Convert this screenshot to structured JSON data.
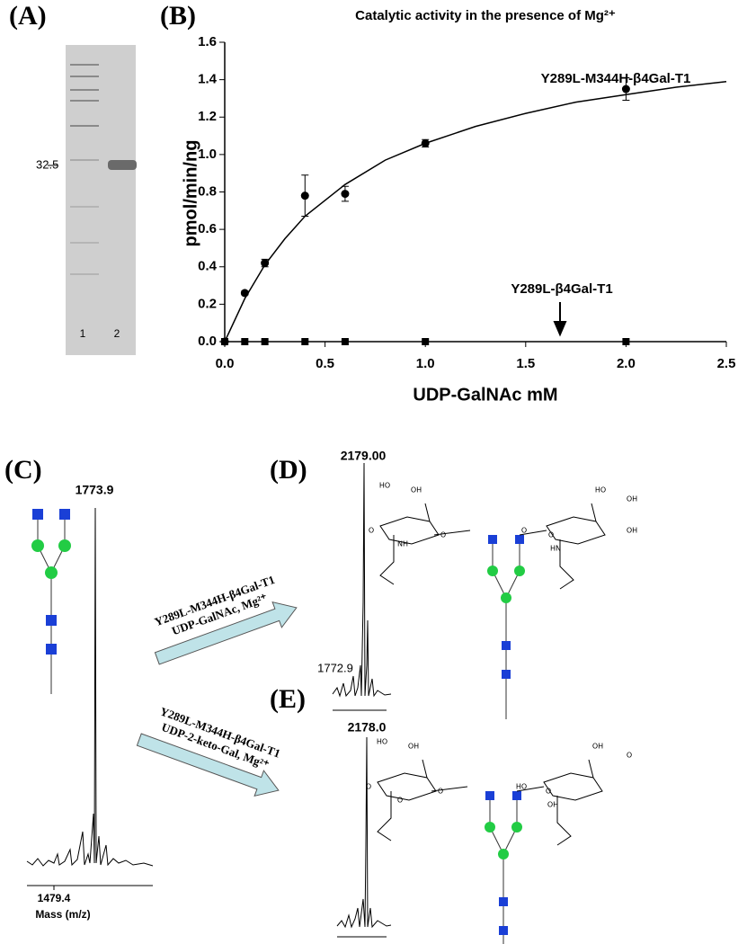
{
  "panels": {
    "a": {
      "label": "(A)",
      "marker": "32.5",
      "lanes": [
        "1",
        "2"
      ]
    },
    "c": {
      "label": "(C)",
      "peak": "1773.9",
      "axis_start": "1479.4",
      "axis_label": "Mass (m/z)"
    },
    "d": {
      "label": "(D)",
      "peak": "2179.00",
      "minor_peak": "1772.9",
      "structure_texts": [
        "HO",
        "OH",
        "O",
        "NH",
        "O",
        "O",
        "HO",
        "OH",
        "O",
        "HN",
        "OH"
      ]
    },
    "e": {
      "label": "(E)",
      "peak": "2178.0",
      "structure_texts": [
        "HO",
        "OH",
        "O",
        "O",
        "O",
        "HO",
        "OH",
        "O",
        "O",
        "OH"
      ]
    },
    "arrows": [
      {
        "enzyme": "Y289L-M344H-β4Gal-T1",
        "conditions": "UDP-GalNAc, Mg²⁺"
      },
      {
        "enzyme": "Y289L-M344H-β4Gal-T1",
        "conditions": "UDP-2-keto-Gal, Mg²⁺"
      }
    ]
  },
  "chart_data": {
    "type": "scatter",
    "panel_label": "(B)",
    "title": "Catalytic activity in the presence of Mg²⁺",
    "x_label": "UDP-GalNAc  mM",
    "y_label": "pmol/min/ng",
    "series": [
      {
        "name": "Y289L-M344H-β4Gal-T1",
        "color": "#000000",
        "marker": "circle",
        "x": [
          0,
          0.1,
          0.2,
          0.4,
          0.6,
          1.0,
          2.0
        ],
        "values": [
          0,
          0.26,
          0.42,
          0.78,
          0.79,
          1.06,
          1.35
        ],
        "errors": [
          0,
          0.01,
          0.02,
          0.11,
          0.04,
          0.02,
          0.06
        ]
      },
      {
        "name": "Y289L-β4Gal-T1",
        "color": "#000000",
        "marker": "square",
        "x": [
          0,
          0.1,
          0.2,
          0.4,
          0.6,
          1.0,
          2.0
        ],
        "values": [
          0,
          0,
          0,
          0,
          0,
          0,
          0
        ]
      }
    ],
    "curve": {
      "x": [
        0,
        0.1,
        0.2,
        0.3,
        0.4,
        0.6,
        0.8,
        1.0,
        1.25,
        1.5,
        1.75,
        2.0,
        2.25,
        2.5
      ],
      "values": [
        0,
        0.23,
        0.41,
        0.55,
        0.67,
        0.84,
        0.97,
        1.06,
        1.15,
        1.22,
        1.28,
        1.32,
        1.36,
        1.39
      ]
    },
    "xlim": [
      0,
      2.5
    ],
    "ylim": [
      0,
      1.6
    ],
    "xticks": [
      {
        "value": 0,
        "label": "0.0"
      },
      {
        "value": 0.5,
        "label": "0.5"
      },
      {
        "value": 1,
        "label": "1.0"
      },
      {
        "value": 1.5,
        "label": "1.5"
      },
      {
        "value": 2,
        "label": "2.0"
      },
      {
        "value": 2.5,
        "label": "2.5"
      }
    ],
    "yticks": [
      {
        "value": 0,
        "label": "0.0"
      },
      {
        "value": 0.2,
        "label": "0.2"
      },
      {
        "value": 0.4,
        "label": "0.4"
      },
      {
        "value": 0.6,
        "label": "0.6"
      },
      {
        "value": 0.8,
        "label": "0.8"
      },
      {
        "value": 1,
        "label": "1.0"
      },
      {
        "value": 1.2,
        "label": "1.2"
      },
      {
        "value": 1.4,
        "label": "1.4"
      },
      {
        "value": 1.6,
        "label": "1.6"
      }
    ]
  }
}
